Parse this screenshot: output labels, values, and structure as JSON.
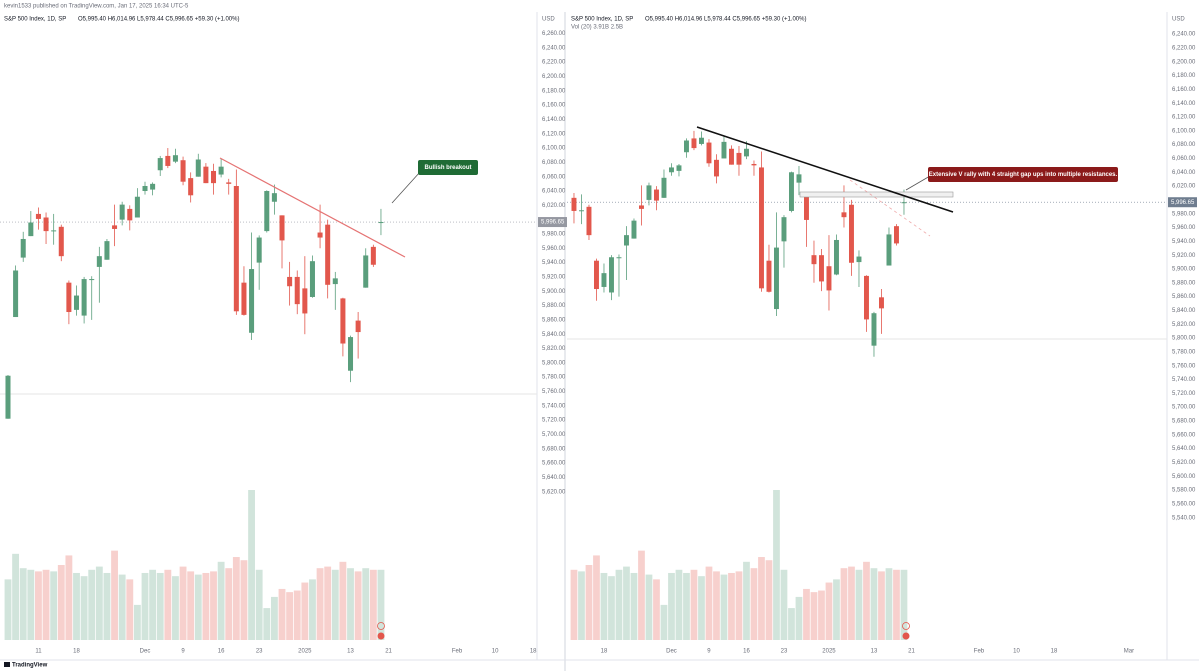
{
  "header": {
    "byline": "kevin1533 published on TradingView.com, Jan 17, 2025 16:34 UTC-5"
  },
  "footer": {
    "brand": "TradingView"
  },
  "chart_data": [
    {
      "type": "candlestick",
      "title": "S&P 500 Index, 1D, SP",
      "ohlc_legend": "O5,995.40 H6,014.96 L5,978.44 C5,996.65 +59.30 (+1.00%)",
      "currency": "USD",
      "up_color": "#5a9e7c",
      "down_color": "#e2574c",
      "grid": false,
      "open": [
        5722,
        5864,
        5947,
        5977,
        6008,
        6003,
        5985,
        5990,
        5912,
        5874,
        5866,
        5917,
        5934,
        5944,
        5992,
        6000,
        6015,
        6003,
        6040,
        6042,
        6069,
        6089,
        6081,
        6083,
        6058,
        6060,
        6074,
        6068,
        6063,
        6052,
        6047,
        5912,
        5842,
        5940,
        5984,
        6025,
        6006,
        5920,
        5920,
        5904,
        5892,
        5982,
        5993,
        5910,
        5890,
        5789,
        5859,
        5905,
        5962,
        5995.4
      ],
      "high": [
        5783,
        5936,
        5983,
        6012,
        6017,
        6010,
        6008,
        5993,
        5915,
        5908,
        5920,
        5921,
        5962,
        5973,
        6021,
        6025,
        6020,
        6044,
        6053,
        6052,
        6089,
        6100,
        6099,
        6088,
        6066,
        6092,
        6079,
        6078,
        6085,
        6057,
        6070,
        5935,
        5982,
        5978,
        6041,
        6049,
        6006,
        5941,
        5929,
        5949,
        5950,
        6021,
        6000,
        5927,
        5891,
        5838,
        5871,
        5960,
        5965,
        6014.96
      ],
      "low": [
        5722,
        5864,
        5941,
        5977,
        5986,
        5966,
        5965,
        5942,
        5854,
        5866,
        5855,
        5860,
        5884,
        5944,
        5963,
        5992,
        5985,
        6003,
        6035,
        6034,
        6061,
        6072,
        6079,
        6048,
        6024,
        6060,
        6051,
        6035,
        6059,
        6035,
        5867,
        5866,
        5832,
        5902,
        5982,
        6007,
        5932,
        5880,
        5868,
        5840,
        5891,
        5960,
        5890,
        5874,
        5809,
        5773,
        5806,
        5905,
        5934,
        5978.44
      ],
      "close": [
        5782,
        5929,
        5973,
        5996,
        6001,
        5984,
        5985,
        5949,
        5871,
        5894,
        5917,
        5917,
        5949,
        5970,
        5987,
        6021,
        5999,
        6032,
        6047,
        6050,
        6086,
        6075,
        6090,
        6053,
        6034,
        6084,
        6051,
        6051,
        6074,
        6050,
        5872,
        5867,
        5931,
        5975,
        6040,
        6037,
        5971,
        5907,
        5882,
        5869,
        5942,
        5975,
        5909,
        5918,
        5827,
        5836,
        5843,
        5950,
        5937,
        5996.65
      ],
      "volume": [
        3.8,
        5.4,
        4.5,
        4.4,
        4.3,
        4.4,
        4.3,
        4.7,
        5.3,
        4.2,
        4.0,
        4.4,
        4.6,
        4.2,
        5.6,
        4.1,
        3.8,
        2.2,
        4.2,
        4.4,
        4.2,
        4.4,
        4.0,
        4.6,
        4.3,
        4.1,
        4.2,
        4.3,
        4.9,
        4.5,
        5.2,
        5.0,
        9.4,
        4.4,
        2.0,
        2.7,
        3.2,
        3.0,
        3.1,
        3.6,
        3.8,
        4.5,
        4.6,
        4.4,
        4.9,
        4.5,
        4.3,
        4.5,
        4.4,
        4.4
      ],
      "xlim": [
        -1.05,
        69.5
      ],
      "xticks": [
        {
          "value": 4,
          "label": "11"
        },
        {
          "value": 9,
          "label": "18"
        },
        {
          "value": 18,
          "label": "Dec"
        },
        {
          "value": 23,
          "label": "9"
        },
        {
          "value": 28,
          "label": "16"
        },
        {
          "value": 33,
          "label": "23"
        },
        {
          "value": 39,
          "label": "2025"
        },
        {
          "value": 45,
          "label": "13"
        },
        {
          "value": 50,
          "label": "21"
        },
        {
          "value": 59,
          "label": "Feb"
        },
        {
          "value": 64,
          "label": "10"
        },
        {
          "value": 69,
          "label": "18"
        }
      ],
      "ylim": [
        5385,
        6290
      ],
      "yticks": [
        {
          "value": 6260,
          "label": "6,260.00"
        },
        {
          "value": 6240,
          "label": "6,240.00"
        },
        {
          "value": 6220,
          "label": "6,220.00"
        },
        {
          "value": 6200,
          "label": "6,200.00"
        },
        {
          "value": 6180,
          "label": "6,180.00"
        },
        {
          "value": 6160,
          "label": "6,160.00"
        },
        {
          "value": 6140,
          "label": "6,140.00"
        },
        {
          "value": 6120,
          "label": "6,120.00"
        },
        {
          "value": 6100,
          "label": "6,100.00"
        },
        {
          "value": 6080,
          "label": "6,080.00"
        },
        {
          "value": 6060,
          "label": "6,060.00"
        },
        {
          "value": 6040,
          "label": "6,040.00"
        },
        {
          "value": 6020,
          "label": "6,020.00"
        },
        {
          "value": 5980,
          "label": "5,980.00"
        },
        {
          "value": 5960,
          "label": "5,960.00"
        },
        {
          "value": 5940,
          "label": "5,940.00"
        },
        {
          "value": 5920,
          "label": "5,920.00"
        },
        {
          "value": 5900,
          "label": "5,900.00"
        },
        {
          "value": 5880,
          "label": "5,880.00"
        },
        {
          "value": 5860,
          "label": "5,860.00"
        },
        {
          "value": 5840,
          "label": "5,840.00"
        },
        {
          "value": 5820,
          "label": "5,820.00"
        },
        {
          "value": 5800,
          "label": "5,800.00"
        },
        {
          "value": 5780,
          "label": "5,780.00"
        },
        {
          "value": 5760,
          "label": "5,760.00"
        },
        {
          "value": 5740,
          "label": "5,740.00"
        },
        {
          "value": 5720,
          "label": "5,720.00"
        },
        {
          "value": 5700,
          "label": "5,700.00"
        },
        {
          "value": 5680,
          "label": "5,680.00"
        },
        {
          "value": 5660,
          "label": "5,660.00"
        },
        {
          "value": 5640,
          "label": "5,640.00"
        },
        {
          "value": 5620,
          "label": "5,620.00"
        }
      ],
      "last_price": {
        "value": 5996.65,
        "label": "5,996.65"
      },
      "last_price_color": "#9598a1",
      "annotations": [
        "Bullish breakout"
      ]
    },
    {
      "type": "candlestick",
      "title": "S&P 500 Index, 1D, SP",
      "ohlc_legend": "O5,995.40 H6,014.96 L5,978.44 C5,996.65 +59.30 (+1.00%)",
      "volume_legend": "Vol (20)  3.91B  2.5B",
      "currency": "USD",
      "up_color": "#5a9e7c",
      "down_color": "#e2574c",
      "grid": false,
      "open": [
        6003,
        5985,
        5990,
        5912,
        5874,
        5866,
        5917,
        5934,
        5944,
        5992,
        6000,
        6015,
        6003,
        6040,
        6042,
        6069,
        6089,
        6081,
        6083,
        6058,
        6060,
        6074,
        6068,
        6063,
        6052,
        6047,
        5912,
        5842,
        5940,
        5984,
        6025,
        6006,
        5920,
        5920,
        5904,
        5892,
        5982,
        5993,
        5910,
        5890,
        5789,
        5859,
        5905,
        5962,
        5995.4
      ],
      "high": [
        6010,
        6008,
        5993,
        5915,
        5908,
        5920,
        5921,
        5962,
        5973,
        6021,
        6025,
        6020,
        6044,
        6053,
        6052,
        6089,
        6100,
        6099,
        6088,
        6066,
        6092,
        6079,
        6078,
        6085,
        6057,
        6070,
        5935,
        5982,
        5978,
        6041,
        6049,
        6006,
        5941,
        5929,
        5949,
        5950,
        6021,
        6000,
        5927,
        5891,
        5838,
        5871,
        5960,
        5965,
        6014.96
      ],
      "low": [
        5966,
        5965,
        5942,
        5854,
        5866,
        5855,
        5860,
        5884,
        5944,
        5963,
        5992,
        5985,
        6003,
        6035,
        6034,
        6061,
        6072,
        6079,
        6048,
        6024,
        6060,
        6051,
        6035,
        6059,
        6035,
        5867,
        5866,
        5832,
        5902,
        5982,
        6007,
        5932,
        5880,
        5868,
        5840,
        5891,
        5960,
        5890,
        5874,
        5809,
        5773,
        5806,
        5905,
        5934,
        5978.44
      ],
      "close": [
        5984,
        5985,
        5949,
        5871,
        5894,
        5917,
        5917,
        5949,
        5970,
        5987,
        6021,
        5999,
        6032,
        6047,
        6050,
        6086,
        6075,
        6090,
        6053,
        6034,
        6084,
        6051,
        6051,
        6074,
        6050,
        5872,
        5867,
        5931,
        5975,
        6040,
        6037,
        5971,
        5907,
        5882,
        5869,
        5942,
        5975,
        5909,
        5918,
        5827,
        5836,
        5843,
        5950,
        5937,
        5996.65
      ],
      "volume": [
        4.4,
        4.3,
        4.7,
        5.3,
        4.2,
        4.0,
        4.4,
        4.6,
        4.2,
        5.6,
        4.1,
        3.8,
        2.2,
        4.2,
        4.4,
        4.2,
        4.4,
        4.0,
        4.6,
        4.3,
        4.1,
        4.2,
        4.3,
        4.9,
        4.5,
        5.2,
        5.0,
        9.4,
        4.4,
        2.0,
        2.7,
        3.2,
        3.0,
        3.1,
        3.6,
        3.8,
        4.5,
        4.6,
        4.4,
        4.9,
        4.5,
        4.3,
        4.5,
        4.4,
        4.4
      ],
      "xlim": [
        -0.93,
        79.07
      ],
      "xticks": [
        {
          "value": 4,
          "label": "18"
        },
        {
          "value": 13,
          "label": "Dec"
        },
        {
          "value": 18,
          "label": "9"
        },
        {
          "value": 23,
          "label": "16"
        },
        {
          "value": 28,
          "label": "23"
        },
        {
          "value": 34,
          "label": "2025"
        },
        {
          "value": 40,
          "label": "13"
        },
        {
          "value": 45,
          "label": "21"
        },
        {
          "value": 54,
          "label": "Feb"
        },
        {
          "value": 59,
          "label": "10"
        },
        {
          "value": 64,
          "label": "18"
        },
        {
          "value": 74,
          "label": "Mar"
        }
      ],
      "ylim": [
        5334,
        6272
      ],
      "yticks": [
        {
          "value": 6240,
          "label": "6,240.00"
        },
        {
          "value": 6220,
          "label": "6,220.00"
        },
        {
          "value": 6200,
          "label": "6,200.00"
        },
        {
          "value": 6180,
          "label": "6,180.00"
        },
        {
          "value": 6160,
          "label": "6,160.00"
        },
        {
          "value": 6140,
          "label": "6,140.00"
        },
        {
          "value": 6120,
          "label": "6,120.00"
        },
        {
          "value": 6100,
          "label": "6,100.00"
        },
        {
          "value": 6080,
          "label": "6,080.00"
        },
        {
          "value": 6060,
          "label": "6,060.00"
        },
        {
          "value": 6040,
          "label": "6,040.00"
        },
        {
          "value": 6020,
          "label": "6,020.00"
        },
        {
          "value": 5980,
          "label": "5,980.00"
        },
        {
          "value": 5960,
          "label": "5,960.00"
        },
        {
          "value": 5940,
          "label": "5,940.00"
        },
        {
          "value": 5920,
          "label": "5,920.00"
        },
        {
          "value": 5900,
          "label": "5,900.00"
        },
        {
          "value": 5880,
          "label": "5,880.00"
        },
        {
          "value": 5860,
          "label": "5,860.00"
        },
        {
          "value": 5840,
          "label": "5,840.00"
        },
        {
          "value": 5820,
          "label": "5,820.00"
        },
        {
          "value": 5800,
          "label": "5,800.00"
        },
        {
          "value": 5780,
          "label": "5,780.00"
        },
        {
          "value": 5760,
          "label": "5,760.00"
        },
        {
          "value": 5740,
          "label": "5,740.00"
        },
        {
          "value": 5720,
          "label": "5,720.00"
        },
        {
          "value": 5700,
          "label": "5,700.00"
        },
        {
          "value": 5680,
          "label": "5,680.00"
        },
        {
          "value": 5660,
          "label": "5,660.00"
        },
        {
          "value": 5640,
          "label": "5,640.00"
        },
        {
          "value": 5620,
          "label": "5,620.00"
        },
        {
          "value": 5600,
          "label": "5,600.00"
        },
        {
          "value": 5580,
          "label": "5,580.00"
        },
        {
          "value": 5560,
          "label": "5,560.00"
        },
        {
          "value": 5540,
          "label": "5,540.00"
        }
      ],
      "last_price": {
        "value": 5996.65,
        "label": "5,996.65"
      },
      "last_price_color": "#6f7d8f",
      "annotations": [
        "Extensive V rally with 4 straight gap ups into multiple resistances."
      ]
    }
  ]
}
